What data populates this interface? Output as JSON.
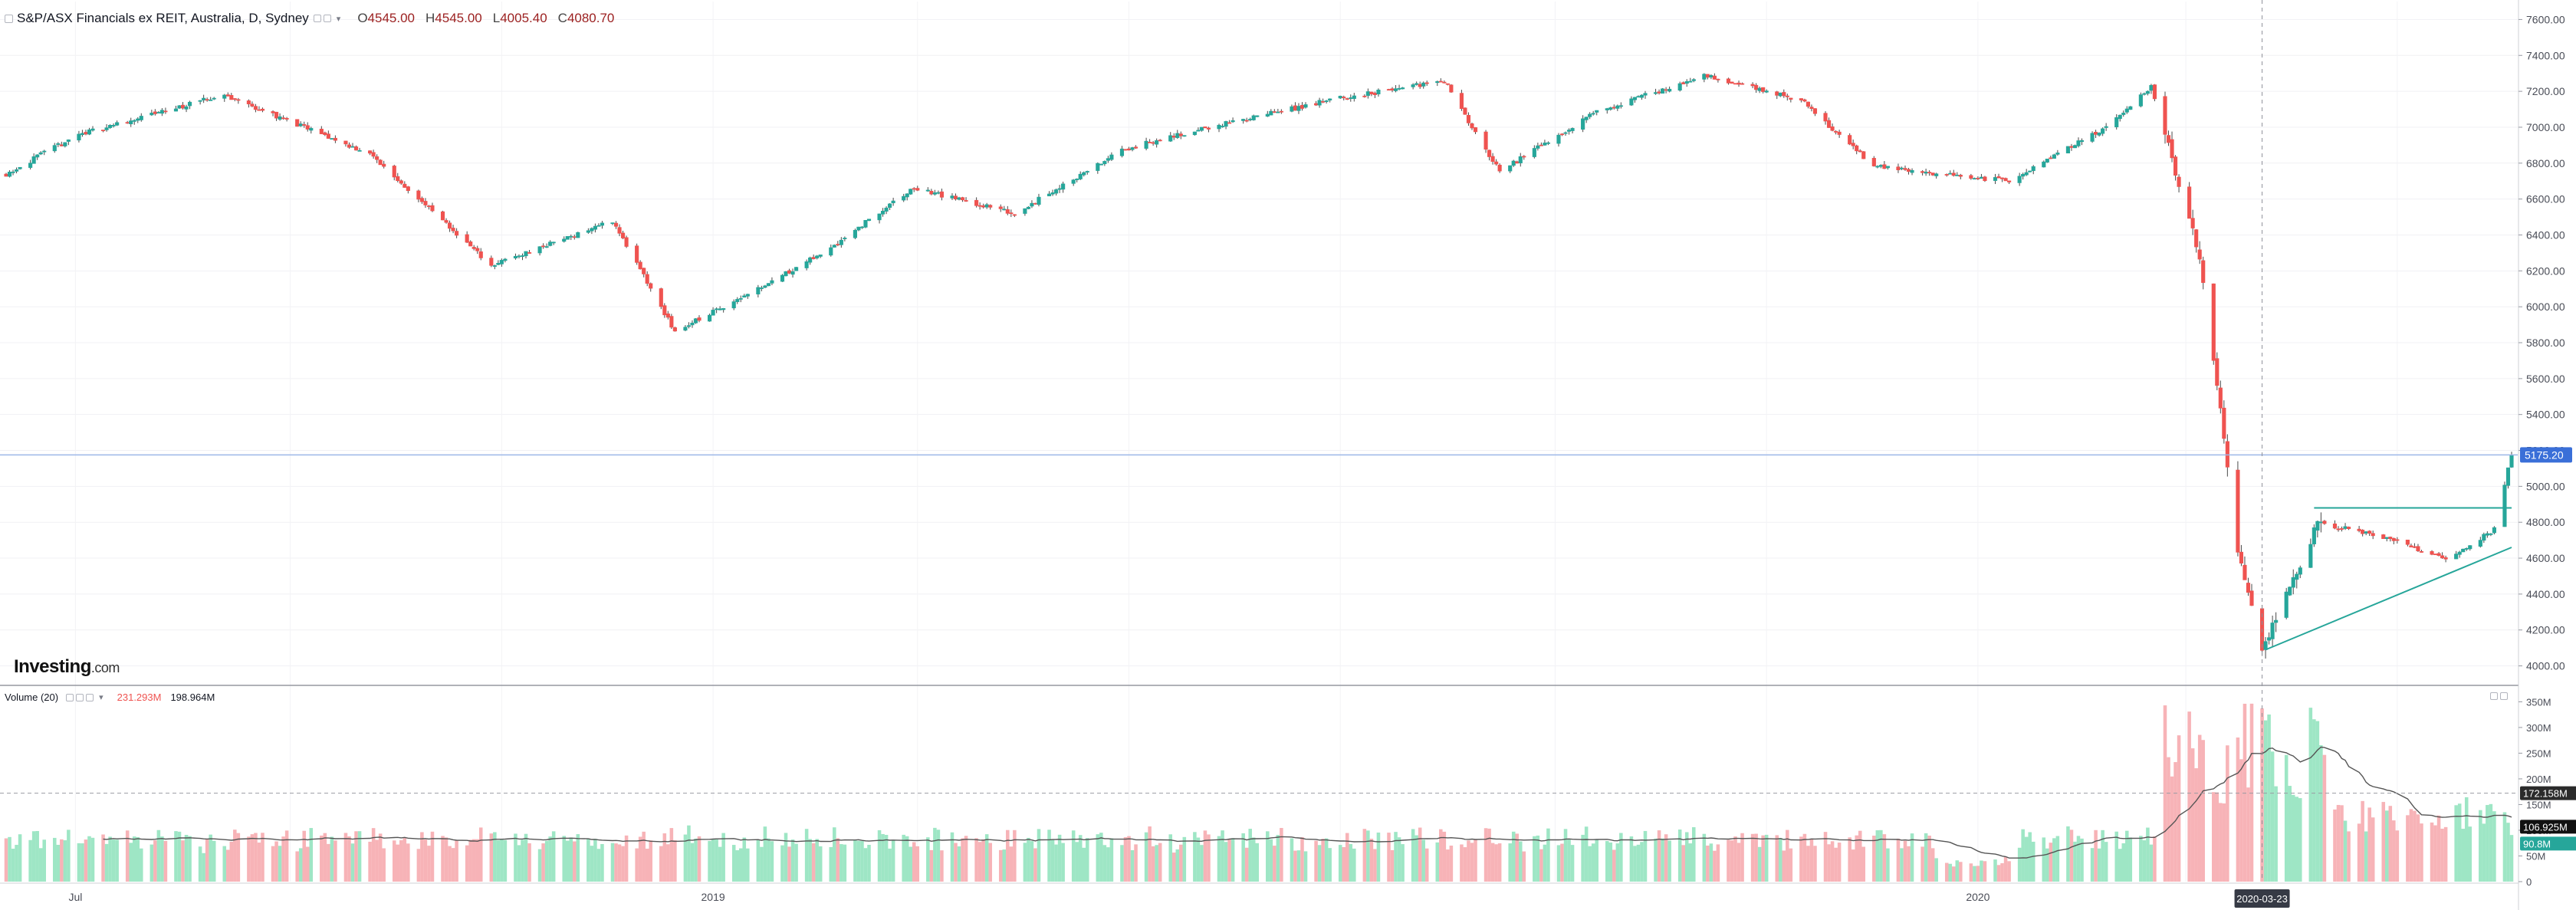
{
  "header": {
    "symbol": "S&P/ASX Financials ex REIT, Australia, D, Sydney",
    "ohlc": [
      {
        "label": "O",
        "value": "4545.00"
      },
      {
        "label": "H",
        "value": "4545.00"
      },
      {
        "label": "L",
        "value": "4005.40"
      },
      {
        "label": "C",
        "value": "4080.70"
      }
    ]
  },
  "volume_header": {
    "label": "Volume (20)",
    "value_a": "231.293M",
    "value_b": "198.964M"
  },
  "brand": {
    "name": "Investing",
    "domain": ".com"
  },
  "colors": {
    "up": "#26a69a",
    "down": "#ef5350",
    "wick": "#4a4a4a",
    "vol_up": "#9ee6c5",
    "vol_down": "#f7b3b7",
    "ma": "#555555",
    "last_price": "#3a6fd8",
    "trendline": "#26a69a"
  },
  "chart_data": [
    {
      "type": "candlestick",
      "title": "S&P/ASX Financials ex REIT, Australia, D, Sydney",
      "ylim": [
        3900,
        7700
      ],
      "y_ticks": [
        "7600.00",
        "7400.00",
        "7200.00",
        "7000.00",
        "6800.00",
        "6600.00",
        "6400.00",
        "6200.00",
        "6000.00",
        "5800.00",
        "5600.00",
        "5400.00",
        "5200.00",
        "5000.00",
        "4800.00",
        "4600.00",
        "4400.00",
        "4200.00",
        "4000.00"
      ],
      "x_tick_labels": [
        "Jul",
        "2019",
        "2020"
      ],
      "x_range": [
        "2018-06-11",
        "2020-06-03"
      ],
      "crosshair_date": "2020-03-23",
      "last_price": "5175.20",
      "trendlines": [
        {
          "from": {
            "date": "2020-03-24",
            "value": 4090
          },
          "to": {
            "date": "2020-06-03",
            "value": 4660
          }
        },
        {
          "from": {
            "date": "2020-04-07",
            "value": 4880
          },
          "to": {
            "date": "2020-06-03",
            "value": 4880
          }
        }
      ],
      "key_closes": [
        {
          "date": "2018-06-11",
          "close": 6740
        },
        {
          "date": "2018-07-02",
          "close": 6960
        },
        {
          "date": "2018-08-13",
          "close": 7180
        },
        {
          "date": "2018-09-24",
          "close": 6850
        },
        {
          "date": "2018-10-29",
          "close": 6230
        },
        {
          "date": "2018-12-03",
          "close": 6480
        },
        {
          "date": "2018-12-21",
          "close": 5860
        },
        {
          "date": "2019-01-31",
          "close": 6280
        },
        {
          "date": "2019-02-28",
          "close": 6660
        },
        {
          "date": "2019-03-29",
          "close": 6520
        },
        {
          "date": "2019-04-30",
          "close": 6880
        },
        {
          "date": "2019-05-20",
          "close": 6980
        },
        {
          "date": "2019-06-28",
          "close": 7150
        },
        {
          "date": "2019-07-31",
          "close": 7260
        },
        {
          "date": "2019-08-16",
          "close": 6750
        },
        {
          "date": "2019-09-12",
          "close": 7080
        },
        {
          "date": "2019-10-15",
          "close": 7290
        },
        {
          "date": "2019-11-11",
          "close": 7150
        },
        {
          "date": "2019-12-02",
          "close": 6780
        },
        {
          "date": "2020-01-10",
          "close": 6700
        },
        {
          "date": "2020-02-07",
          "close": 7000
        },
        {
          "date": "2020-02-20",
          "close": 7230
        },
        {
          "date": "2020-03-05",
          "close": 6300
        },
        {
          "date": "2020-03-16",
          "close": 4650
        },
        {
          "date": "2020-03-23",
          "close": 4080
        },
        {
          "date": "2020-04-08",
          "close": 4800
        },
        {
          "date": "2020-05-01",
          "close": 4700
        },
        {
          "date": "2020-05-15",
          "close": 4590
        },
        {
          "date": "2020-05-29",
          "close": 4760
        },
        {
          "date": "2020-06-03",
          "close": 5175.2
        }
      ]
    },
    {
      "type": "bar",
      "title": "Volume (20)",
      "ylim": [
        0,
        370
      ],
      "unit": "M",
      "y_ticks": [
        "350M",
        "300M",
        "250M",
        "200M",
        "150M",
        "100M",
        "50M",
        "0"
      ],
      "flags": [
        {
          "label": "172.158M",
          "value": 172.158
        },
        {
          "label": "106.925M",
          "value": 106.925
        },
        {
          "label": "90.8M",
          "value": 90.8
        }
      ],
      "ma_period": 20,
      "typical_volume_m": [
        75,
        90
      ],
      "peak_volume_m": 350
    }
  ]
}
